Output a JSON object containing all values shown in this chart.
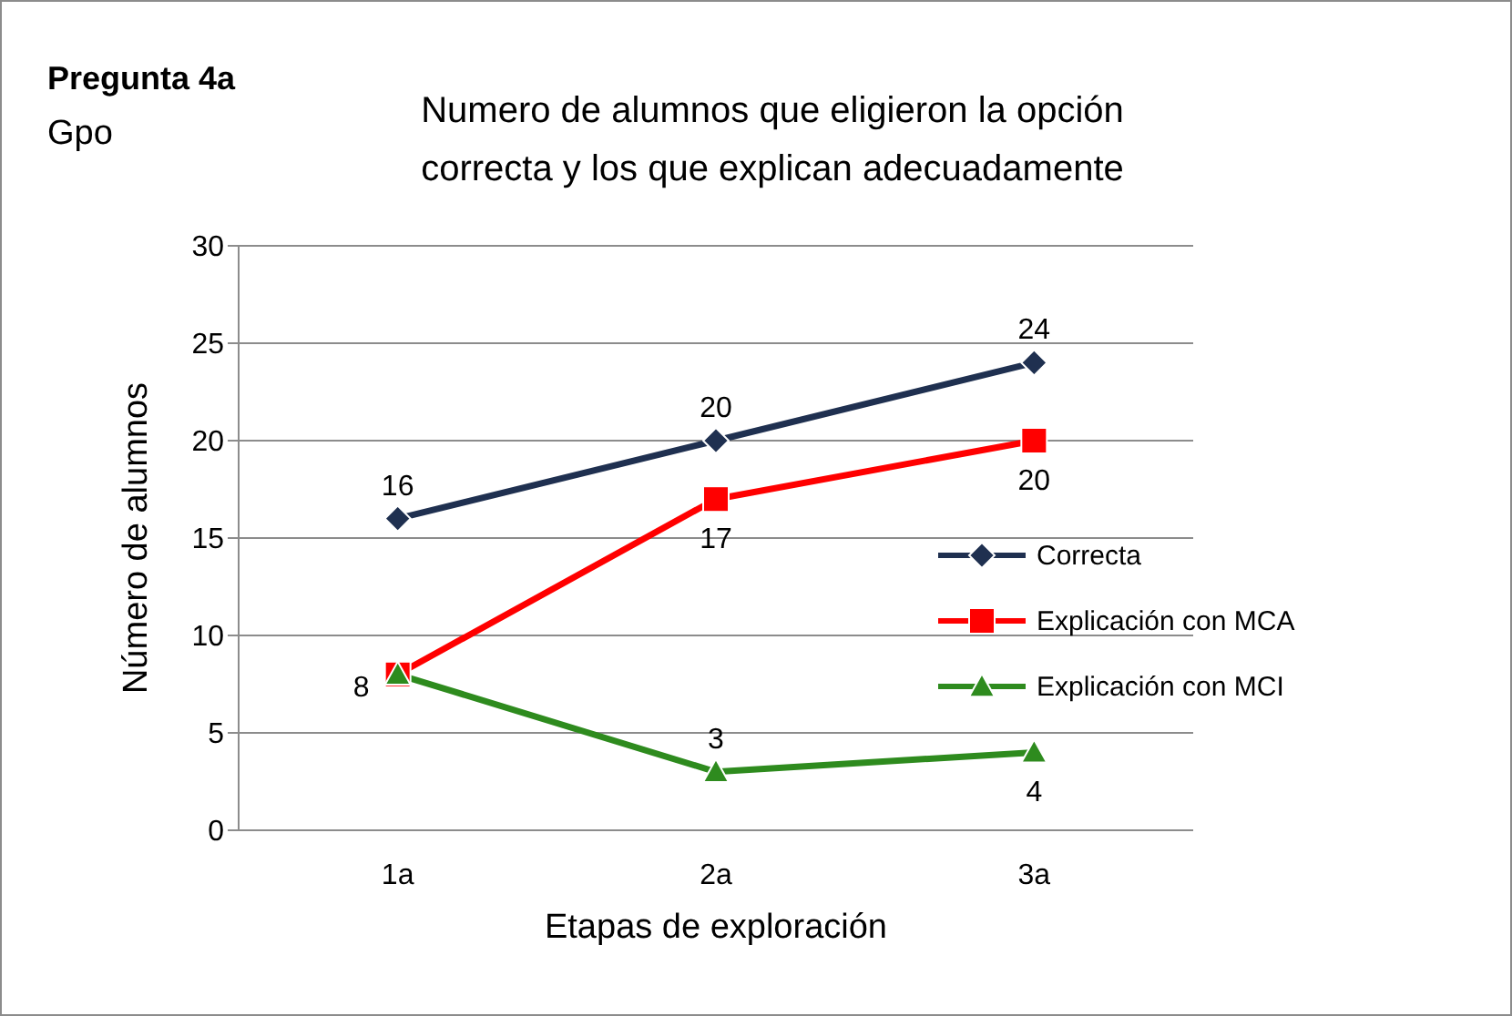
{
  "chart_data": {
    "type": "line",
    "title": "Numero de alumnos que eligieron la opción\ncorrecta y los que explican adecuadamente",
    "annotations": [
      "Pregunta 4a",
      "Gpo"
    ],
    "xlabel": "Etapas de exploración",
    "ylabel": "Número de alumnos",
    "categories": [
      "1a",
      "2a",
      "3a"
    ],
    "ylim": [
      0,
      30
    ],
    "yticks": [
      0,
      5,
      10,
      15,
      20,
      25,
      30
    ],
    "grid": "y",
    "legend": "right",
    "series": [
      {
        "name": "Correcta",
        "color": "#1f3050",
        "marker": "diamond",
        "values": [
          16,
          20,
          24
        ],
        "value_labels": [
          "16",
          "20",
          "24"
        ]
      },
      {
        "name": "Explicación con MCA",
        "color": "#ff0000",
        "marker": "square",
        "values": [
          8,
          17,
          20
        ],
        "value_labels": [
          "8",
          "17",
          "20"
        ]
      },
      {
        "name": "Explicación con MCI",
        "color": "#2e8b1e",
        "marker": "triangle",
        "values": [
          8,
          3,
          4
        ],
        "value_labels": [
          null,
          "3",
          "4"
        ]
      }
    ]
  }
}
